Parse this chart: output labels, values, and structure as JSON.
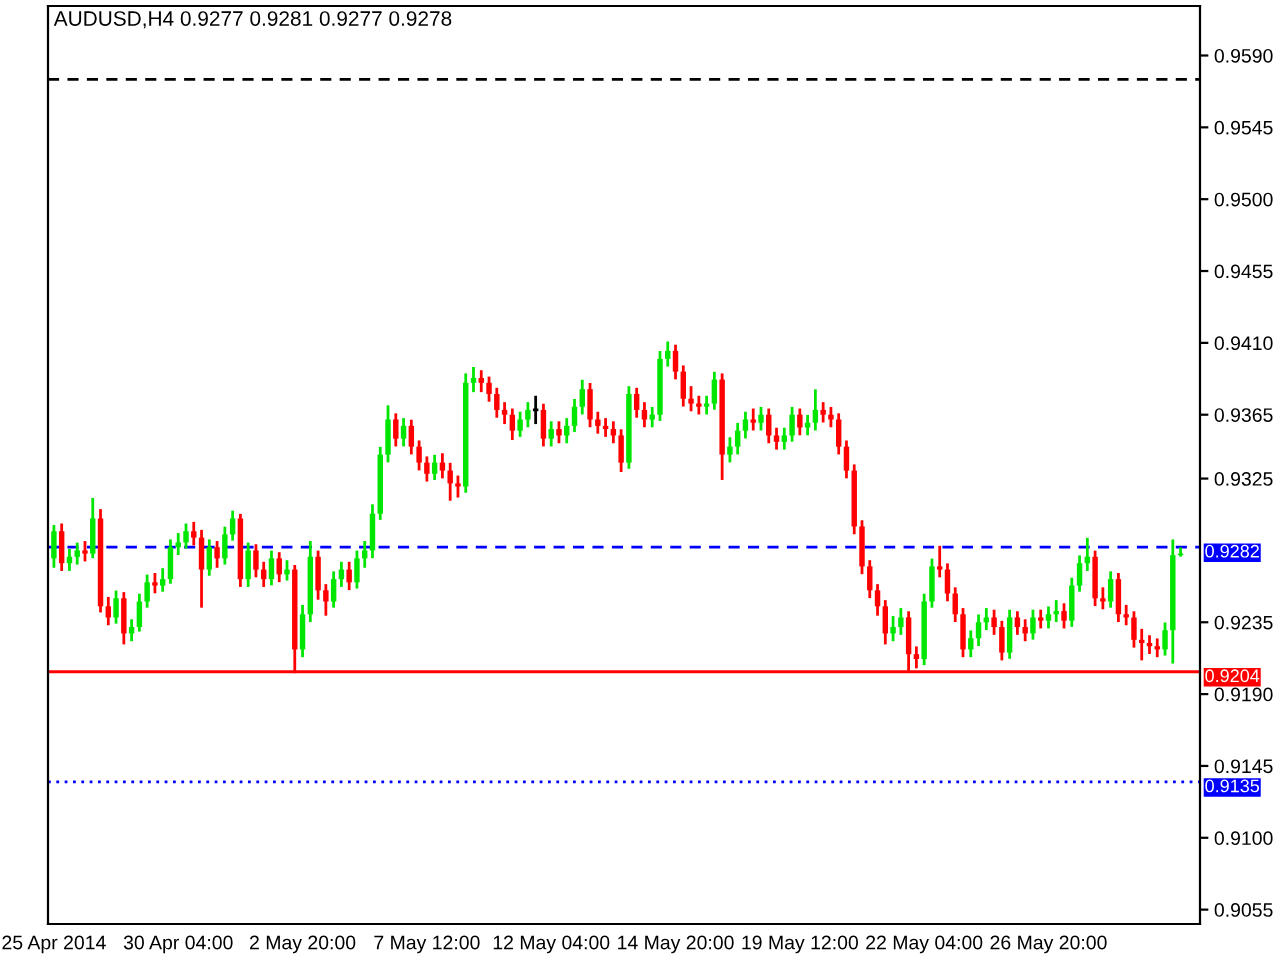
{
  "chart_data": {
    "type": "candlestick",
    "title": "AUDUSD,H4 0.9277 0.9281 0.9277 0.9278",
    "categories": [
      "25 Apr 2014",
      null,
      null,
      null,
      null,
      null,
      null,
      null,
      null,
      null,
      null,
      null,
      null,
      null,
      null,
      null,
      "30 Apr 04:00",
      null,
      null,
      null,
      null,
      null,
      null,
      null,
      null,
      null,
      null,
      null,
      null,
      null,
      null,
      null,
      "2 May 20:00",
      null,
      null,
      null,
      null,
      null,
      null,
      null,
      null,
      null,
      null,
      null,
      null,
      null,
      null,
      null,
      "7 May 12:00",
      null,
      null,
      null,
      null,
      null,
      null,
      null,
      null,
      null,
      null,
      null,
      null,
      null,
      null,
      null,
      "12 May 04:00",
      null,
      null,
      null,
      null,
      null,
      null,
      null,
      null,
      null,
      null,
      null,
      null,
      null,
      null,
      null,
      "14 May 20:00",
      null,
      null,
      null,
      null,
      null,
      null,
      null,
      null,
      null,
      null,
      null,
      null,
      null,
      null,
      null,
      "19 May 12:00",
      null,
      null,
      null,
      null,
      null,
      null,
      null,
      null,
      null,
      null,
      null,
      null,
      null,
      null,
      null,
      "22 May 04:00",
      null,
      null,
      null,
      null,
      null,
      null,
      null,
      null,
      null,
      null,
      null,
      null,
      null,
      null,
      null,
      "26 May 20:00",
      null,
      null,
      null,
      null,
      null,
      null,
      null,
      null,
      null,
      null,
      null,
      null,
      null,
      null,
      null,
      null,
      null
    ],
    "ohlc": [
      [
        0.9275,
        0.9295,
        0.927,
        0.9292
      ],
      [
        0.9292,
        0.9296,
        0.9268,
        0.9272
      ],
      [
        0.9272,
        0.928,
        0.9268,
        0.9276
      ],
      [
        0.9276,
        0.9284,
        0.9272,
        0.928
      ],
      [
        0.928,
        0.9285,
        0.9274,
        0.9278
      ],
      [
        0.9278,
        0.9312,
        0.9276,
        0.93
      ],
      [
        0.93,
        0.9305,
        0.9242,
        0.9245
      ],
      [
        0.9245,
        0.925,
        0.9234,
        0.9238
      ],
      [
        0.9238,
        0.9254,
        0.9235,
        0.925
      ],
      [
        0.925,
        0.9253,
        0.9222,
        0.9228
      ],
      [
        0.9228,
        0.9236,
        0.9224,
        0.9232
      ],
      [
        0.9232,
        0.9252,
        0.923,
        0.9248
      ],
      [
        0.9248,
        0.9264,
        0.9245,
        0.926
      ],
      [
        0.926,
        0.9265,
        0.9254,
        0.9258
      ],
      [
        0.9258,
        0.9268,
        0.9255,
        0.9262
      ],
      [
        0.9262,
        0.9286,
        0.926,
        0.9282
      ],
      [
        0.9282,
        0.929,
        0.9278,
        0.9285
      ],
      [
        0.9285,
        0.9296,
        0.9282,
        0.9292
      ],
      [
        0.9292,
        0.9297,
        0.9284,
        0.9288
      ],
      [
        0.9288,
        0.9292,
        0.9245,
        0.9268
      ],
      [
        0.9268,
        0.9286,
        0.9265,
        0.9282
      ],
      [
        0.9282,
        0.9285,
        0.927,
        0.9275
      ],
      [
        0.9275,
        0.9294,
        0.9272,
        0.929
      ],
      [
        0.929,
        0.9304,
        0.9287,
        0.93
      ],
      [
        0.93,
        0.9302,
        0.9258,
        0.9262
      ],
      [
        0.9262,
        0.9284,
        0.9258,
        0.928
      ],
      [
        0.928,
        0.9283,
        0.9264,
        0.9268
      ],
      [
        0.9268,
        0.9272,
        0.9258,
        0.9262
      ],
      [
        0.9262,
        0.9279,
        0.9259,
        0.9275
      ],
      [
        0.9275,
        0.9278,
        0.9261,
        0.9265
      ],
      [
        0.9265,
        0.9273,
        0.9262,
        0.9268
      ],
      [
        0.9268,
        0.927,
        0.9204,
        0.9218
      ],
      [
        0.9218,
        0.9245,
        0.9214,
        0.924
      ],
      [
        0.924,
        0.9285,
        0.9236,
        0.9276
      ],
      [
        0.9276,
        0.9279,
        0.925,
        0.9255
      ],
      [
        0.9255,
        0.9258,
        0.924,
        0.9248
      ],
      [
        0.9248,
        0.9266,
        0.9245,
        0.9262
      ],
      [
        0.9262,
        0.9272,
        0.9258,
        0.9268
      ],
      [
        0.9268,
        0.9272,
        0.9256,
        0.926
      ],
      [
        0.926,
        0.9279,
        0.9257,
        0.9275
      ],
      [
        0.9275,
        0.9285,
        0.927,
        0.928
      ],
      [
        0.928,
        0.9308,
        0.9276,
        0.9303
      ],
      [
        0.9303,
        0.9344,
        0.93,
        0.934
      ],
      [
        0.934,
        0.937,
        0.9336,
        0.9362
      ],
      [
        0.9362,
        0.9365,
        0.9346,
        0.935
      ],
      [
        0.935,
        0.9362,
        0.9346,
        0.9358
      ],
      [
        0.9358,
        0.9361,
        0.9341,
        0.9345
      ],
      [
        0.9345,
        0.9348,
        0.9331,
        0.9335
      ],
      [
        0.9335,
        0.9338,
        0.9324,
        0.9328
      ],
      [
        0.9328,
        0.9339,
        0.9325,
        0.9335
      ],
      [
        0.9335,
        0.934,
        0.9326,
        0.933
      ],
      [
        0.933,
        0.9334,
        0.9312,
        0.9322
      ],
      [
        0.9322,
        0.9326,
        0.9314,
        0.932
      ],
      [
        0.932,
        0.939,
        0.9317,
        0.9385
      ],
      [
        0.9385,
        0.9394,
        0.938,
        0.9388
      ],
      [
        0.9388,
        0.9392,
        0.938,
        0.9385
      ],
      [
        0.9385,
        0.9388,
        0.9374,
        0.9378
      ],
      [
        0.9378,
        0.9381,
        0.9364,
        0.9368
      ],
      [
        0.9368,
        0.9372,
        0.936,
        0.9365
      ],
      [
        0.9365,
        0.9368,
        0.935,
        0.9355
      ],
      [
        0.9355,
        0.9366,
        0.9352,
        0.9362
      ],
      [
        0.9362,
        0.9372,
        0.9358,
        0.9368
      ],
      [
        0.9368,
        0.9376,
        0.936,
        0.9368
      ],
      [
        0.9368,
        0.9371,
        0.9346,
        0.935
      ],
      [
        0.935,
        0.936,
        0.9346,
        0.9356
      ],
      [
        0.9356,
        0.936,
        0.9348,
        0.9352
      ],
      [
        0.9352,
        0.9362,
        0.9348,
        0.9358
      ],
      [
        0.9358,
        0.9374,
        0.9355,
        0.937
      ],
      [
        0.937,
        0.9386,
        0.9366,
        0.9381
      ],
      [
        0.9381,
        0.9384,
        0.9358,
        0.9362
      ],
      [
        0.9362,
        0.9366,
        0.9354,
        0.9358
      ],
      [
        0.9358,
        0.9362,
        0.9352,
        0.9356
      ],
      [
        0.9356,
        0.936,
        0.9348,
        0.9352
      ],
      [
        0.9352,
        0.9355,
        0.933,
        0.9335
      ],
      [
        0.9335,
        0.9382,
        0.9332,
        0.9378
      ],
      [
        0.9378,
        0.9381,
        0.9364,
        0.9368
      ],
      [
        0.9368,
        0.9372,
        0.9358,
        0.9362
      ],
      [
        0.9362,
        0.9369,
        0.9358,
        0.9365
      ],
      [
        0.9365,
        0.9404,
        0.9362,
        0.94
      ],
      [
        0.94,
        0.941,
        0.9396,
        0.9405
      ],
      [
        0.9405,
        0.9408,
        0.9388,
        0.9392
      ],
      [
        0.9392,
        0.9395,
        0.9371,
        0.9375
      ],
      [
        0.9375,
        0.9382,
        0.9368,
        0.9372
      ],
      [
        0.9372,
        0.9376,
        0.9366,
        0.937
      ],
      [
        0.937,
        0.9376,
        0.9366,
        0.9372
      ],
      [
        0.9372,
        0.9391,
        0.9369,
        0.9387
      ],
      [
        0.9387,
        0.939,
        0.9325,
        0.934
      ],
      [
        0.934,
        0.935,
        0.9336,
        0.9345
      ],
      [
        0.9345,
        0.9359,
        0.9341,
        0.9355
      ],
      [
        0.9355,
        0.9366,
        0.9351,
        0.9362
      ],
      [
        0.9362,
        0.9368,
        0.9356,
        0.936
      ],
      [
        0.936,
        0.9369,
        0.9356,
        0.9365
      ],
      [
        0.9365,
        0.9368,
        0.9348,
        0.9352
      ],
      [
        0.9352,
        0.9356,
        0.9344,
        0.9348
      ],
      [
        0.9348,
        0.9356,
        0.9344,
        0.9352
      ],
      [
        0.9352,
        0.9369,
        0.9349,
        0.9365
      ],
      [
        0.9365,
        0.9368,
        0.9353,
        0.9357
      ],
      [
        0.9357,
        0.9364,
        0.9353,
        0.936
      ],
      [
        0.936,
        0.938,
        0.9356,
        0.9368
      ],
      [
        0.9368,
        0.9372,
        0.9361,
        0.9365
      ],
      [
        0.9365,
        0.9369,
        0.9358,
        0.9362
      ],
      [
        0.9362,
        0.9365,
        0.9341,
        0.9345
      ],
      [
        0.9345,
        0.9348,
        0.9326,
        0.933
      ],
      [
        0.933,
        0.9333,
        0.9291,
        0.9295
      ],
      [
        0.9295,
        0.9298,
        0.9266,
        0.927
      ],
      [
        0.927,
        0.9273,
        0.9251,
        0.9255
      ],
      [
        0.9255,
        0.9258,
        0.924,
        0.9245
      ],
      [
        0.9245,
        0.9248,
        0.9222,
        0.9228
      ],
      [
        0.9228,
        0.9238,
        0.9224,
        0.9232
      ],
      [
        0.9232,
        0.9243,
        0.9228,
        0.9238
      ],
      [
        0.9238,
        0.9241,
        0.9205,
        0.9215
      ],
      [
        0.9215,
        0.9219,
        0.9207,
        0.9212
      ],
      [
        0.9212,
        0.9252,
        0.9209,
        0.9248
      ],
      [
        0.9248,
        0.9274,
        0.9245,
        0.927
      ],
      [
        0.927,
        0.9282,
        0.9264,
        0.9268
      ],
      [
        0.9268,
        0.9271,
        0.9249,
        0.9253
      ],
      [
        0.9253,
        0.9256,
        0.9236,
        0.924
      ],
      [
        0.924,
        0.9243,
        0.9214,
        0.9218
      ],
      [
        0.9218,
        0.9229,
        0.9214,
        0.9225
      ],
      [
        0.9225,
        0.9239,
        0.9221,
        0.9235
      ],
      [
        0.9235,
        0.9243,
        0.9231,
        0.9238
      ],
      [
        0.9238,
        0.9242,
        0.9228,
        0.9232
      ],
      [
        0.9232,
        0.9235,
        0.9212,
        0.9216
      ],
      [
        0.9216,
        0.9242,
        0.9213,
        0.9238
      ],
      [
        0.9238,
        0.9241,
        0.9228,
        0.9232
      ],
      [
        0.9232,
        0.9236,
        0.9224,
        0.9228
      ],
      [
        0.9228,
        0.9242,
        0.9225,
        0.9238
      ],
      [
        0.9238,
        0.9242,
        0.9232,
        0.9236
      ],
      [
        0.9236,
        0.9244,
        0.9232,
        0.924
      ],
      [
        0.924,
        0.9248,
        0.9236,
        0.9242
      ],
      [
        0.9242,
        0.9246,
        0.9232,
        0.9236
      ],
      [
        0.9236,
        0.9262,
        0.9233,
        0.9258
      ],
      [
        0.9258,
        0.9276,
        0.9255,
        0.9272
      ],
      [
        0.9272,
        0.9287,
        0.9268,
        0.9276
      ],
      [
        0.9276,
        0.9279,
        0.9246,
        0.925
      ],
      [
        0.925,
        0.9256,
        0.9244,
        0.9248
      ],
      [
        0.9248,
        0.9266,
        0.9245,
        0.9262
      ],
      [
        0.9262,
        0.9265,
        0.9236,
        0.924
      ],
      [
        0.924,
        0.9245,
        0.9234,
        0.9238
      ],
      [
        0.9238,
        0.9241,
        0.922,
        0.9224
      ],
      [
        0.9224,
        0.923,
        0.9212,
        0.9222
      ],
      [
        0.9222,
        0.9226,
        0.9216,
        0.922
      ],
      [
        0.922,
        0.9224,
        0.9214,
        0.9218
      ],
      [
        0.9218,
        0.9234,
        0.9215,
        0.923
      ],
      [
        0.923,
        0.9286,
        0.921,
        0.9277
      ],
      [
        0.9277,
        0.9281,
        0.9277,
        0.9278
      ]
    ],
    "ylim": [
      0.9046,
      0.9621
    ],
    "yticks": [
      {
        "value": 0.9055,
        "label": "0.9055"
      },
      {
        "value": 0.91,
        "label": "0.9100"
      },
      {
        "value": 0.9145,
        "label": "0.9145"
      },
      {
        "value": 0.919,
        "label": "0.9190"
      },
      {
        "value": 0.9235,
        "label": "0.9235"
      },
      {
        "value": 0.9325,
        "label": "0.9325"
      },
      {
        "value": 0.9365,
        "label": "0.9365"
      },
      {
        "value": 0.941,
        "label": "0.9410"
      },
      {
        "value": 0.9455,
        "label": "0.9455"
      },
      {
        "value": 0.95,
        "label": "0.9500"
      },
      {
        "value": 0.9545,
        "label": "0.9545"
      },
      {
        "value": 0.959,
        "label": "0.9590"
      }
    ],
    "ref_lines": [
      {
        "axis": "y",
        "value": 0.9282,
        "label": "0.9282",
        "color": "#0000ff",
        "line_style": "dashed"
      },
      {
        "axis": "y",
        "value": 0.9204,
        "label": "0.9204",
        "color": "#ff0000",
        "line_style": "solid"
      },
      {
        "axis": "y",
        "value": 0.9135,
        "label": "0.9135",
        "color": "#0000ff",
        "line_style": "dotted"
      },
      {
        "axis": "y",
        "value": 0.9575,
        "color": "#000000",
        "line_style": "dashed"
      }
    ]
  }
}
